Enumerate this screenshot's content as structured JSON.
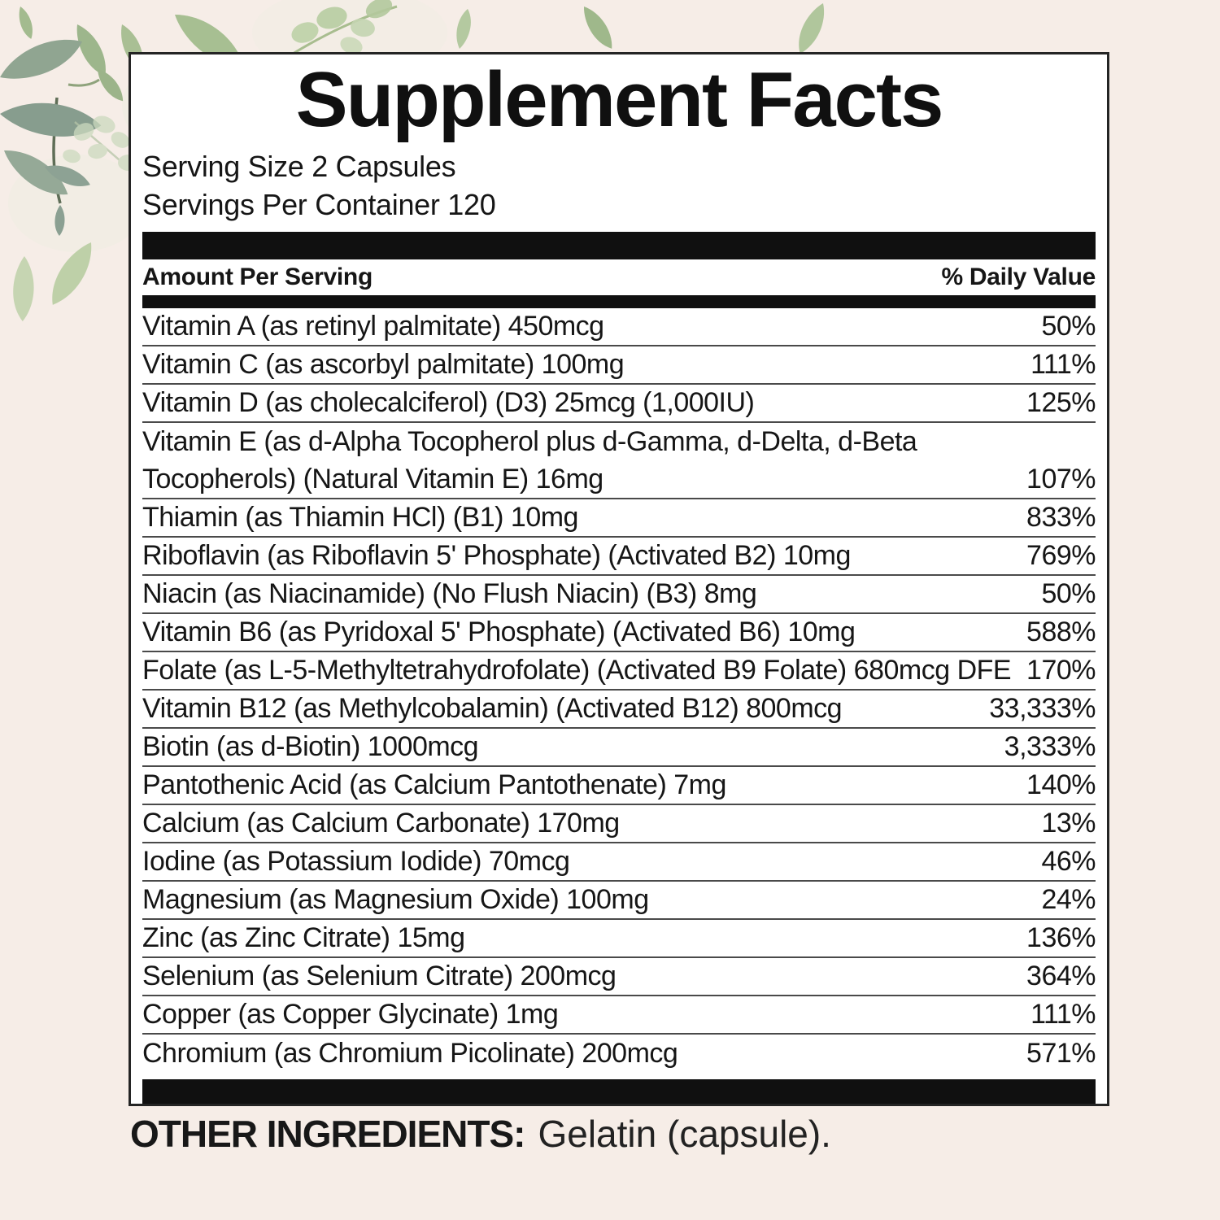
{
  "label": {
    "title": "Supplement Facts",
    "serving_size": "Serving Size 2 Capsules",
    "servings_per_container": "Servings Per Container 120",
    "columns": {
      "amount": "Amount Per Serving",
      "daily_value": "% Daily Value"
    },
    "rows": [
      {
        "name": "Vitamin A (as retinyl palmitate) 450mcg",
        "dv": "50%"
      },
      {
        "name": "Vitamin C (as ascorbyl palmitate) 100mg",
        "dv": "111%"
      },
      {
        "name": "Vitamin D (as cholecalciferol) (D3) 25mcg (1,000IU)",
        "dv": "125%"
      },
      {
        "name": "Vitamin E (as d-Alpha Tocopherol plus d-Gamma, d-Delta, d-Beta",
        "name2": "Tocopherols) (Natural Vitamin E) 16mg",
        "dv": "107%"
      },
      {
        "name": "Thiamin (as Thiamin HCl) (B1) 10mg",
        "dv": "833%"
      },
      {
        "name": "Riboflavin (as Riboflavin 5' Phosphate) (Activated B2) 10mg",
        "dv": "769%"
      },
      {
        "name": "Niacin (as Niacinamide) (No Flush Niacin) (B3) 8mg",
        "dv": "50%"
      },
      {
        "name": "Vitamin B6 (as Pyridoxal 5' Phosphate) (Activated B6) 10mg",
        "dv": "588%"
      },
      {
        "name": "Folate (as L-5-Methyltetrahydrofolate) (Activated B9 Folate) 680mcg DFE",
        "dv": "170%"
      },
      {
        "name": "Vitamin B12 (as Methylcobalamin) (Activated B12) 800mcg",
        "dv": "33,333%"
      },
      {
        "name": "Biotin (as d-Biotin) 1000mcg",
        "dv": "3,333%"
      },
      {
        "name": "Pantothenic Acid (as Calcium Pantothenate) 7mg",
        "dv": "140%"
      },
      {
        "name": "Calcium (as Calcium Carbonate) 170mg",
        "dv": "13%"
      },
      {
        "name": "Iodine (as Potassium Iodide) 70mcg",
        "dv": "46%"
      },
      {
        "name": "Magnesium (as Magnesium Oxide) 100mg",
        "dv": "24%"
      },
      {
        "name": "Zinc (as Zinc Citrate) 15mg",
        "dv": "136%"
      },
      {
        "name": "Selenium (as Selenium Citrate) 200mcg",
        "dv": "364%"
      },
      {
        "name": "Copper (as Copper Glycinate) 1mg",
        "dv": "111%"
      },
      {
        "name": "Chromium (as Chromium Picolinate) 200mcg",
        "dv": "571%"
      }
    ],
    "footer": {
      "other_ingredients_label": "OTHER INGREDIENTS:",
      "other_ingredients_value": "Gelatin (capsule)."
    }
  },
  "colors": {
    "background": "#f6ede7",
    "panel_background": "#ffffff",
    "panel_border": "#242424",
    "divider_bar": "#101010",
    "row_separator": "#4a4a4a",
    "text": "#161616",
    "leaf_light_sage": "#bcd0a6",
    "leaf_sage": "#9fb88b",
    "leaf_gray_green": "#8da294",
    "leaf_faded": "#ccdabe",
    "stem_dark": "#5f6e57"
  }
}
